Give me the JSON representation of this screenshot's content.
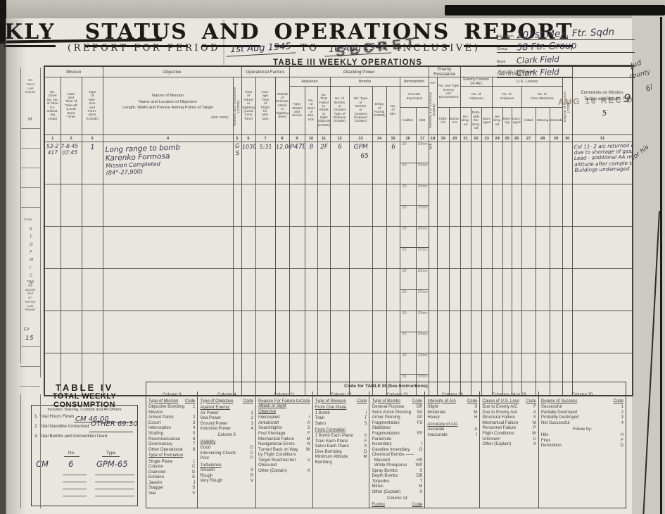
{
  "page": {
    "title_words": {
      "w1": "KLY",
      "w2": "STATUS",
      "w3": "AND",
      "w4": "OPERATIONS",
      "w5": "REPORT"
    },
    "subtitle": {
      "prefix": "(REPORT  FOR  PERIOD",
      "from_value": "1st Aug 1945",
      "to": "TO",
      "to_value": "10 Aug 1945",
      "suffix": "INCLUSIVE)"
    },
    "secret_stamp": "SECRET",
    "table3_title": "TABLE III   WEEKLY OPERATIONS",
    "received_stamp": "AUG 16 REC'D",
    "margin_notes": {
      "top1": "Jud",
      "top2": "county",
      "top3": "6/",
      "mark": "9",
      "mid": "for his"
    }
  },
  "unit_block": {
    "fields": [
      {
        "label": "Squadron",
        "value": "201st Mex. Ftr. Sqdn"
      },
      {
        "label": "Group",
        "value": "58 Ftr. Group"
      },
      {
        "label": "Base",
        "value": "Clark Field"
      },
      {
        "label": "Take Off Point",
        "value": "Clark Field"
      }
    ]
  },
  "table3": {
    "h": {
      "g_mission": "Mission",
      "g_objective": "Objective",
      "g_opfac": "Operational Factors",
      "g_attack": "Attacking Power",
      "g_enemy": "Enemy\nResistance",
      "g_results": "Results of Mission",
      "c1": "No.\n(Give\nSq. No.\nof other\nCo-\nordinat-\ning\nUnits)",
      "c2": "Date\nand\nTime of\nTake-off\n(Local\nZone\nTime)",
      "c3": "Type\nof\nMis-\nsion\nand\nForm-\nation\n(CODE)",
      "c4": "Nature of Mission\nName and Location of Objective\nLength, Width and Precise Aiming Points of Target",
      "see_code": "(SEE CODE)",
      "c5": "Visibility and Turbulence (CODE)",
      "c6": "Time\nof\nAttack\nor\nSighting\n(Local\nZone\nTime)",
      "c7": "Aver-\nage\nTime\nof\nFlight\nfor\nMis-\nsion",
      "c8": "Altitude\nof\nRelease,\nAttack\nor\nSighting\n(feet)",
      "airplanes": "Airplanes",
      "bombs": "Bombs",
      "ammunition": "Ammunition",
      "c9": "Type,\nModel\nand\nSeries",
      "c10": "No.\nat\nStart\nof\nMis-\nsion",
      "c11": "No.\nThat\nFailed\nto\nAttack\nor\nSight\nObjective\n(CODE)",
      "c12": "No. of\nBombs\nor\nClusters\nType of\nRelease\n(CODE)",
      "c13": "Wt.-Type\nof\nBombs\nor\nClusters\nDropped\n(CODE)",
      "c14": "Delay\nof\nFuzing\n(CODE)",
      "c15": "No.\nof\nMin.",
      "pounds": "Pounds\nExpended",
      "c16": "Caliber",
      "c17": "MM",
      "c18a": "A/A",
      "c18b": "Intensity and Accuracy (CODE)",
      "enemy_ac": "No. and Type\nEnemy\nA/C\nEncountered",
      "c19": "Fight-\ners",
      "c20": "Bomb-\ners",
      "enemy_losses": "Enemy Losses\n(In Air)",
      "no_airplanes_e": "No. of\nAirplanes",
      "us_losses": "U.S. Losses",
      "no_airplanes_us": "No. of\nAirplanes",
      "no_crew": "No. of\nCrew Members",
      "c21": "De-\nstroy-\ned",
      "c22": "Prob-\nably\nDe-\nstroy-\ned",
      "c23": "Dam-\naged",
      "c24": "De-\nstroy-\ned",
      "c25": "Miss-\ning",
      "c26": "Dam-\naged",
      "c27": "Killed",
      "c28": "Missing",
      "c29": "Wounded",
      "c30": "Degree of Success (CODE)",
      "c31": "Comments on Mission,\nTactics and Results",
      "c31_note": "5"
    },
    "col_numbers": [
      "1",
      "2",
      "3",
      "4",
      "5",
      "6",
      "7",
      "8",
      "9",
      "10",
      "11",
      "12",
      "13",
      "14",
      "15",
      "16",
      "17",
      "18",
      "19",
      "20",
      "21",
      "22",
      "23",
      "24",
      "25",
      "26",
      "27",
      "28",
      "29",
      "30",
      "31"
    ],
    "ammo": {
      "cal_top": ".30",
      "mm_top": "20mm",
      "cal_bot": ".50",
      "mm_bot": "37mm"
    },
    "block_count": 6,
    "row1": {
      "c1": [
        "53-2",
        "417"
      ],
      "c2": [
        "7-8-45",
        "07:45"
      ],
      "c3": "1",
      "c4": [
        "Long range  to bomb",
        "Karenko Formosa",
        "Mission Completed",
        "(84°-27,900)"
      ],
      "c5": [
        "G",
        "S"
      ],
      "c6": "1030",
      "c7": "5:31",
      "c8": "12,000",
      "c9": "P47D",
      "c10": "8",
      "c11": "2F",
      "c12": "6",
      "c13": [
        "GPM",
        "65"
      ],
      "c15": "6",
      "c18": "5",
      "c31": [
        "Col 11- 2 a/c returned early",
        "due to shortage of gas/belly tank.",
        "Lead - additional AA rep'd at",
        "altitude after comple-tion.",
        "Buildings undamaged."
      ]
    }
  },
  "table4": {
    "title1": "TABLE IV",
    "title2": "TOTAL WEEKLY CONSUMPTION",
    "subtitle": "Includes Training, Combat and All Others",
    "line1": "1. Total Hours Flown",
    "line2": "2. Total Gasoline Consumed",
    "line3": "3. Total Bombs and Ammunition Used",
    "hw_line1": "CM        46:00",
    "hw_line2": "OTHER  69:30",
    "col_no": "No.",
    "col_type": "Type",
    "hw_cm": "CM",
    "hw_no": "6",
    "hw_type": "GPM-65"
  },
  "code_table": {
    "title": "Code for TABLE III   (See Instructions)",
    "blocks": [
      {
        "header": "Column 3",
        "entries": [
          {
            "t": "lbl",
            "l": "Type of Mission",
            "r": "Code"
          },
          {
            "l": "Objective Bombing Mission",
            "r": "1"
          },
          {
            "l": "Armed Patrol",
            "r": "2"
          },
          {
            "l": "Escort",
            "r": "3"
          },
          {
            "l": "Interception",
            "r": "4"
          },
          {
            "l": "Strafing",
            "r": "5"
          },
          {
            "l": "Reconnaissance",
            "r": "6"
          },
          {
            "l": "Diversionary",
            "r": "7"
          },
          {
            "l": "Other Operational",
            "r": "8"
          },
          {
            "t": "lbl",
            "l": "Type of Formation",
            "r": ""
          },
          {
            "l": "Single Plane",
            "r": "1"
          },
          {
            "l": "Column",
            "r": "C"
          },
          {
            "l": "Diamond",
            "r": "D"
          },
          {
            "l": "Echelon",
            "r": "E"
          },
          {
            "l": "Javelin",
            "r": "J"
          },
          {
            "l": "Stagger",
            "r": "S"
          },
          {
            "l": "Vee",
            "r": "V"
          }
        ]
      },
      {
        "header": "Column 4",
        "entries": [
          {
            "t": "lbl",
            "l": "Type of Objective",
            "r": "Code"
          },
          {
            "t": "sub",
            "x": "Against Enemy:"
          },
          {
            "l": "Air Power",
            "r": "1"
          },
          {
            "l": "Sea Power",
            "r": "2"
          },
          {
            "l": "Ground Power",
            "r": "3"
          },
          {
            "l": "Industrial Power",
            "r": "4"
          },
          {
            "t": "h2",
            "x": "Column 5"
          },
          {
            "t": "sub",
            "x": "Visibility"
          },
          {
            "l": "Good",
            "r": "G"
          },
          {
            "l": "Intervening Clouds",
            "r": "C"
          },
          {
            "l": "Poor",
            "r": "P"
          },
          {
            "t": "sub",
            "x": "Turbulence"
          },
          {
            "l": "Smooth",
            "r": "S"
          },
          {
            "l": "Rough",
            "r": "R"
          },
          {
            "l": "Very Rough",
            "r": "V"
          }
        ]
      },
      {
        "header": "Column 11",
        "entries": [
          {
            "t": "lbl",
            "l": "Reason For Failure to Attack or Sight Objective",
            "r": "Code"
          },
          {
            "l": "Intercepted",
            "r": "I"
          },
          {
            "l": "Antiaircraft",
            "r": "A"
          },
          {
            "l": "Searchlights",
            "r": "S"
          },
          {
            "l": "Fuel Shortage",
            "r": "F"
          },
          {
            "l": "Mechanical Failure",
            "r": "M"
          },
          {
            "l": "Navigational Errors",
            "r": "N"
          },
          {
            "l": "Turned Back on Way by Flight Conditions",
            "r": "W"
          },
          {
            "l": "Target Reached but Obscured",
            "r": "V"
          },
          {
            "l": "Other (Explain)",
            "r": "X"
          }
        ]
      },
      {
        "header": "Column 12",
        "entries": [
          {
            "t": "lbl",
            "l": "Type of Release",
            "r": "Code"
          },
          {
            "t": "sub",
            "x": "From One Plane"
          },
          {
            "l": "1 Bomb",
            "r": "I"
          },
          {
            "l": "Train",
            "r": "T"
          },
          {
            "l": "Salvo",
            "r": "S"
          },
          {
            "t": "sub",
            "x": "From Formation"
          },
          {
            "l": "1 Bomb Each Plane",
            "r": "V"
          },
          {
            "l": "Train Each Plane",
            "r": "F"
          },
          {
            "l": "Salvo Each Plane",
            "r": "X"
          },
          {
            "l": "Dive Bombing",
            "r": "D"
          },
          {
            "l": "Minimum Altitude Bombing",
            "r": "M"
          }
        ]
      },
      {
        "header": "Column 13",
        "entries": [
          {
            "t": "lbl",
            "l": "Type of Bombs",
            "r": "Code"
          },
          {
            "l": "General Purpose",
            "r": "GP"
          },
          {
            "l": "Semi Armor Piercing",
            "r": "SA"
          },
          {
            "l": "Armor Piercing",
            "r": "AP"
          },
          {
            "l": "Fragmentation Stabilized",
            "r": "FS"
          },
          {
            "l": "Fragmentation Parachute",
            "r": "FP"
          },
          {
            "l": "Incendiary",
            "r": "I"
          },
          {
            "l": "Gasoline Incendiary",
            "r": "G"
          },
          {
            "l": "Chemical Bombs ——",
            "r": ""
          },
          {
            "l": "  Mustard",
            "r": "HS"
          },
          {
            "l": "  White Phosporus",
            "r": "WP"
          },
          {
            "l": "Spray Bombs",
            "r": "S"
          },
          {
            "l": "Depth Bombs",
            "r": "DB"
          },
          {
            "l": "Torpedos",
            "r": "T"
          },
          {
            "l": "Mines",
            "r": "M"
          },
          {
            "l": "Other (Explain)",
            "r": "X"
          },
          {
            "t": "h2",
            "x": "Column 14"
          },
          {
            "t": "lbl",
            "l": "Fuzing",
            "r": "Code"
          },
          {
            "l": "Nose",
            "r": "N"
          },
          {
            "l": "Tail",
            "r": "T"
          }
        ]
      },
      {
        "header": "Column 18",
        "entries": [
          {
            "t": "lbl",
            "l": "Intensity of A/A",
            "r": "Code"
          },
          {
            "l": "Slight",
            "r": "S"
          },
          {
            "l": "Moderate",
            "r": "M"
          },
          {
            "l": "Heavy",
            "r": "H"
          },
          {
            "t": "sub",
            "x": "Accuracy of A/A"
          },
          {
            "l": "Accurate",
            "r": "A"
          },
          {
            "l": "Inaccurate",
            "r": "I"
          }
        ]
      },
      {
        "header": "Columns 24 to 29",
        "entries": [
          {
            "t": "lbl",
            "l": "Cause of U.S. Loss",
            "r": "Code"
          },
          {
            "l": "Due to Enemy A/C",
            "r": "F"
          },
          {
            "l": "Due to Enemy A/A",
            "r": "A"
          },
          {
            "l": "Structural Failure",
            "r": "S"
          },
          {
            "l": "Mechanical Failure",
            "r": "M"
          },
          {
            "l": "Personnel Failure",
            "r": "P"
          },
          {
            "l": "Flight Conditions",
            "r": "W"
          },
          {
            "l": "Unknown",
            "r": "U"
          },
          {
            "l": "Other (Explain)",
            "r": "X"
          }
        ]
      },
      {
        "header": "Column 30",
        "entries": [
          {
            "t": "lbl",
            "l": "Degree of Success",
            "r": "Code"
          },
          {
            "l": "Successful",
            "r": "1"
          },
          {
            "l": "Partially Destroyed",
            "r": "2"
          },
          {
            "l": "Probably Destroyed",
            "r": "3"
          },
          {
            "l": "Not Successful",
            "r": "4"
          },
          {
            "t": "c",
            "x": "Follow by:"
          },
          {
            "l": "Hits",
            "r": "H"
          },
          {
            "l": "Fires",
            "r": "F"
          },
          {
            "l": "Demolition",
            "r": "D"
          }
        ]
      }
    ]
  },
  "left_strip": {
    "on_hand": "On\nHand\nLast\nReport",
    "m": "M",
    "code": "Code",
    "code_letters": [
      "S",
      "T",
      "O",
      "P",
      "M",
      "I",
      "C",
      "N"
    ],
    "total": "Total\nAs-\nsigned\nand\nAt-\ntached\nLast\nReport",
    "fp": "FP",
    "fp_value": "15"
  }
}
